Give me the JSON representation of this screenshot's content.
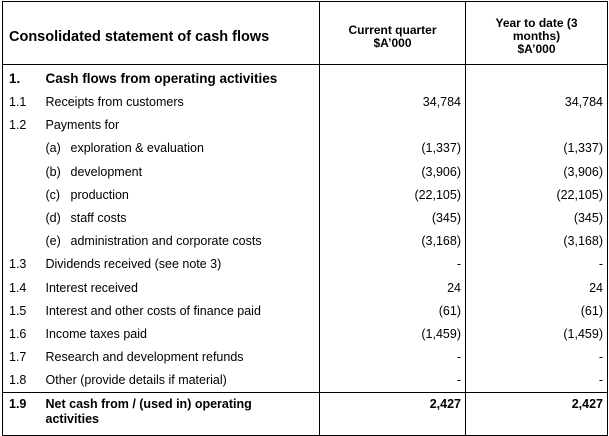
{
  "header": {
    "title": "Consolidated statement of cash flows",
    "col_current": [
      "Current quarter",
      "$A’000"
    ],
    "col_ytd": [
      "Year to date (3",
      "months)",
      "$A’000"
    ]
  },
  "section": {
    "num": "1.",
    "label": "Cash flows from operating activities"
  },
  "rows": [
    {
      "num": "1.1",
      "label": "Receipts from customers",
      "sub": "",
      "current": "34,784",
      "ytd": "34,784"
    },
    {
      "num": "1.2",
      "label": "Payments for",
      "sub": "",
      "current": "",
      "ytd": ""
    },
    {
      "num": "",
      "sub": "(a)",
      "label": "exploration & evaluation",
      "current": "(1,337)",
      "ytd": "(1,337)"
    },
    {
      "num": "",
      "sub": "(b)",
      "label": "development",
      "current": "(3,906)",
      "ytd": "(3,906)"
    },
    {
      "num": "",
      "sub": "(c)",
      "label": "production",
      "current": "(22,105)",
      "ytd": "(22,105)"
    },
    {
      "num": "",
      "sub": "(d)",
      "label": "staff costs",
      "current": "(345)",
      "ytd": "(345)"
    },
    {
      "num": "",
      "sub": "(e)",
      "label": "administration and corporate costs",
      "current": "(3,168)",
      "ytd": "(3,168)"
    },
    {
      "num": "1.3",
      "label": "Dividends received (see note 3)",
      "sub": "",
      "current": "-",
      "ytd": "-"
    },
    {
      "num": "1.4",
      "label": "Interest received",
      "sub": "",
      "current": "24",
      "ytd": "24"
    },
    {
      "num": "1.5",
      "label": "Interest and other costs of finance paid",
      "sub": "",
      "current": "(61)",
      "ytd": "(61)"
    },
    {
      "num": "1.6",
      "label": "Income taxes paid",
      "sub": "",
      "current": "(1,459)",
      "ytd": "(1,459)"
    },
    {
      "num": "1.7",
      "label": "Research and development refunds",
      "sub": "",
      "current": "-",
      "ytd": "-"
    },
    {
      "num": "1.8",
      "label": "Other (provide details if material)",
      "sub": "",
      "current": "-",
      "ytd": "-"
    }
  ],
  "total": {
    "num": "1.9",
    "label": [
      "Net cash from / (used in) operating",
      "activities"
    ],
    "current": "2,427",
    "ytd": "2,427"
  }
}
